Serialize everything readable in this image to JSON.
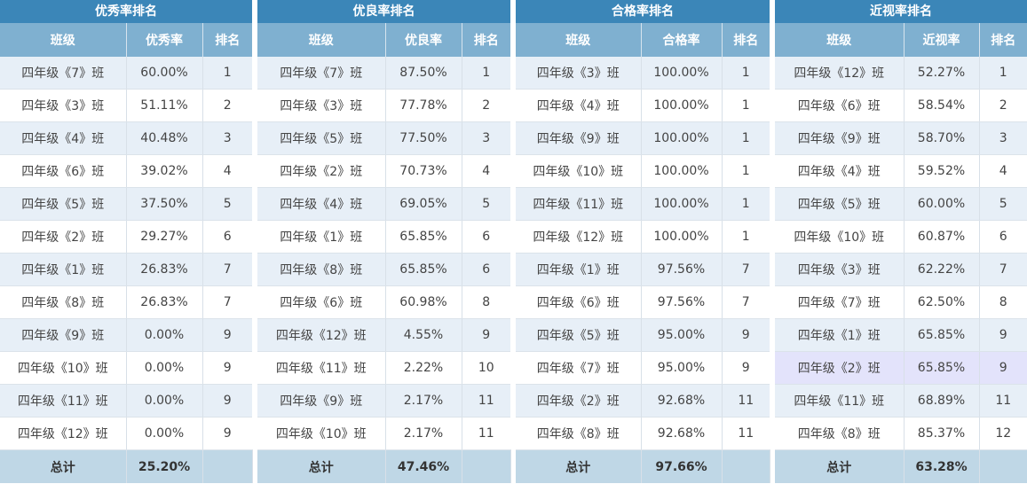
{
  "panels": [
    {
      "title": "优秀率排名",
      "headers": [
        "班级",
        "优秀率",
        "排名"
      ],
      "rows": [
        [
          "四年级《7》班",
          "60.00%",
          "1"
        ],
        [
          "四年级《3》班",
          "51.11%",
          "2"
        ],
        [
          "四年级《4》班",
          "40.48%",
          "3"
        ],
        [
          "四年级《6》班",
          "39.02%",
          "4"
        ],
        [
          "四年级《5》班",
          "37.50%",
          "5"
        ],
        [
          "四年级《2》班",
          "29.27%",
          "6"
        ],
        [
          "四年级《1》班",
          "26.83%",
          "7"
        ],
        [
          "四年级《8》班",
          "26.83%",
          "7"
        ],
        [
          "四年级《9》班",
          "0.00%",
          "9"
        ],
        [
          "四年级《10》班",
          "0.00%",
          "9"
        ],
        [
          "四年级《11》班",
          "0.00%",
          "9"
        ],
        [
          "四年级《12》班",
          "0.00%",
          "9"
        ]
      ],
      "total_label": "总计",
      "total_value": "25.20%"
    },
    {
      "title": "优良率排名",
      "headers": [
        "班级",
        "优良率",
        "排名"
      ],
      "rows": [
        [
          "四年级《7》班",
          "87.50%",
          "1"
        ],
        [
          "四年级《3》班",
          "77.78%",
          "2"
        ],
        [
          "四年级《5》班",
          "77.50%",
          "3"
        ],
        [
          "四年级《2》班",
          "70.73%",
          "4"
        ],
        [
          "四年级《4》班",
          "69.05%",
          "5"
        ],
        [
          "四年级《1》班",
          "65.85%",
          "6"
        ],
        [
          "四年级《8》班",
          "65.85%",
          "6"
        ],
        [
          "四年级《6》班",
          "60.98%",
          "8"
        ],
        [
          "四年级《12》班",
          "4.55%",
          "9"
        ],
        [
          "四年级《11》班",
          "2.22%",
          "10"
        ],
        [
          "四年级《9》班",
          "2.17%",
          "11"
        ],
        [
          "四年级《10》班",
          "2.17%",
          "11"
        ]
      ],
      "total_label": "总计",
      "total_value": "47.46%"
    },
    {
      "title": "合格率排名",
      "headers": [
        "班级",
        "合格率",
        "排名"
      ],
      "rows": [
        [
          "四年级《3》班",
          "100.00%",
          "1"
        ],
        [
          "四年级《4》班",
          "100.00%",
          "1"
        ],
        [
          "四年级《9》班",
          "100.00%",
          "1"
        ],
        [
          "四年级《10》班",
          "100.00%",
          "1"
        ],
        [
          "四年级《11》班",
          "100.00%",
          "1"
        ],
        [
          "四年级《12》班",
          "100.00%",
          "1"
        ],
        [
          "四年级《1》班",
          "97.56%",
          "7"
        ],
        [
          "四年级《6》班",
          "97.56%",
          "7"
        ],
        [
          "四年级《5》班",
          "95.00%",
          "9"
        ],
        [
          "四年级《7》班",
          "95.00%",
          "9"
        ],
        [
          "四年级《2》班",
          "92.68%",
          "11"
        ],
        [
          "四年级《8》班",
          "92.68%",
          "11"
        ]
      ],
      "total_label": "总计",
      "total_value": "97.66%"
    },
    {
      "title": "近视率排名",
      "headers": [
        "班级",
        "近视率",
        "排名"
      ],
      "rows": [
        [
          "四年级《12》班",
          "52.27%",
          "1"
        ],
        [
          "四年级《6》班",
          "58.54%",
          "2"
        ],
        [
          "四年级《9》班",
          "58.70%",
          "3"
        ],
        [
          "四年级《4》班",
          "59.52%",
          "4"
        ],
        [
          "四年级《5》班",
          "60.00%",
          "5"
        ],
        [
          "四年级《10》班",
          "60.87%",
          "6"
        ],
        [
          "四年级《3》班",
          "62.22%",
          "7"
        ],
        [
          "四年级《7》班",
          "62.50%",
          "8"
        ],
        [
          "四年级《1》班",
          "65.85%",
          "9"
        ],
        [
          "四年级《2》班",
          "65.85%",
          "9"
        ],
        [
          "四年级《11》班",
          "68.89%",
          "11"
        ],
        [
          "四年级《8》班",
          "85.37%",
          "12"
        ]
      ],
      "total_label": "总计",
      "total_value": "63.28%",
      "highlighted_row": 9
    }
  ]
}
